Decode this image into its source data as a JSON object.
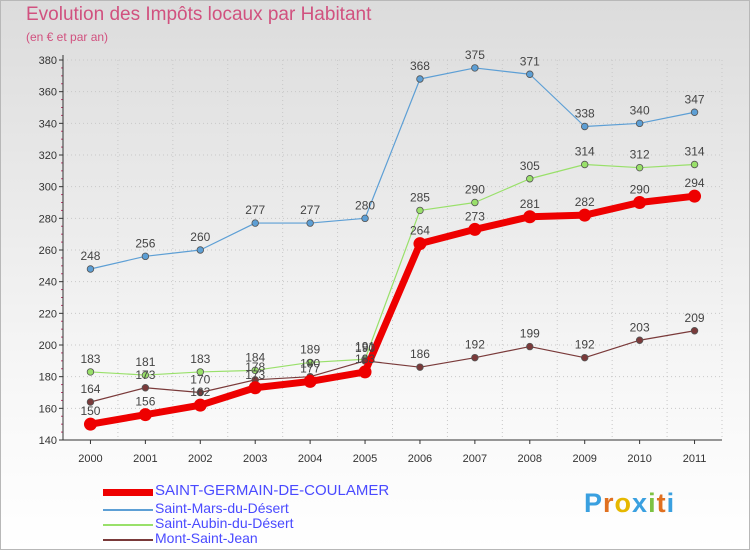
{
  "title": "Evolution des Impôts locaux par Habitant",
  "subtitle": "(en € et par an)",
  "logo": {
    "letters": [
      "P",
      "r",
      "o",
      "x",
      "i",
      "t",
      "i"
    ],
    "colors": [
      "#3aa0e0",
      "#e07020",
      "#e6b800",
      "#3aa0e0",
      "#7dc242",
      "#e07020",
      "#3aa0e0"
    ]
  },
  "chart_data": {
    "type": "line",
    "title": "Evolution des Impôts locaux par Habitant",
    "subtitle": "(en € et par an)",
    "x": [
      "2000",
      "2001",
      "2002",
      "2003",
      "2004",
      "2005",
      "2006",
      "2007",
      "2008",
      "2009",
      "2010",
      "2011"
    ],
    "ylim": [
      140,
      380
    ],
    "yticks": [
      140,
      160,
      180,
      200,
      220,
      240,
      260,
      280,
      300,
      320,
      340,
      360,
      380
    ],
    "grid": true,
    "legend_position": "bottom-left",
    "series": [
      {
        "name": "SAINT-GERMAIN-DE-COULAMER",
        "color": "#ee0000",
        "width": 7,
        "values": [
          150,
          156,
          162,
          173,
          177,
          183,
          264,
          273,
          281,
          282,
          290,
          294
        ],
        "labels": [
          "150",
          "156",
          "162",
          "173",
          "177",
          "183",
          "264",
          "273",
          "281",
          "282",
          "290",
          "294"
        ]
      },
      {
        "name": "Saint-Mars-du-Désert",
        "color": "#5d9fd5",
        "width": 1.2,
        "values": [
          248,
          256,
          260,
          277,
          277,
          280,
          368,
          375,
          371,
          338,
          340,
          347
        ],
        "labels": [
          "248",
          "256",
          "260",
          "277",
          "277",
          "280",
          "368",
          "375",
          "371",
          "338",
          "340",
          "347"
        ]
      },
      {
        "name": "Saint-Aubin-du-Désert",
        "color": "#99e06a",
        "width": 1.2,
        "values": [
          183,
          181,
          183,
          184,
          189,
          191,
          285,
          290,
          305,
          314,
          312,
          314
        ],
        "labels": [
          "183",
          "181",
          "183",
          "184",
          "189",
          "191",
          "285",
          "290",
          "305",
          "314",
          "312",
          "314"
        ]
      },
      {
        "name": "Mont-Saint-Jean",
        "color": "#7a3a3a",
        "width": 1.2,
        "values": [
          164,
          173,
          170,
          178,
          180,
          190,
          186,
          192,
          199,
          192,
          203,
          209
        ],
        "labels": [
          "164",
          "173",
          "170",
          "178",
          "180",
          "190",
          "186",
          "192",
          "199",
          "192",
          "203",
          "209"
        ]
      }
    ]
  }
}
